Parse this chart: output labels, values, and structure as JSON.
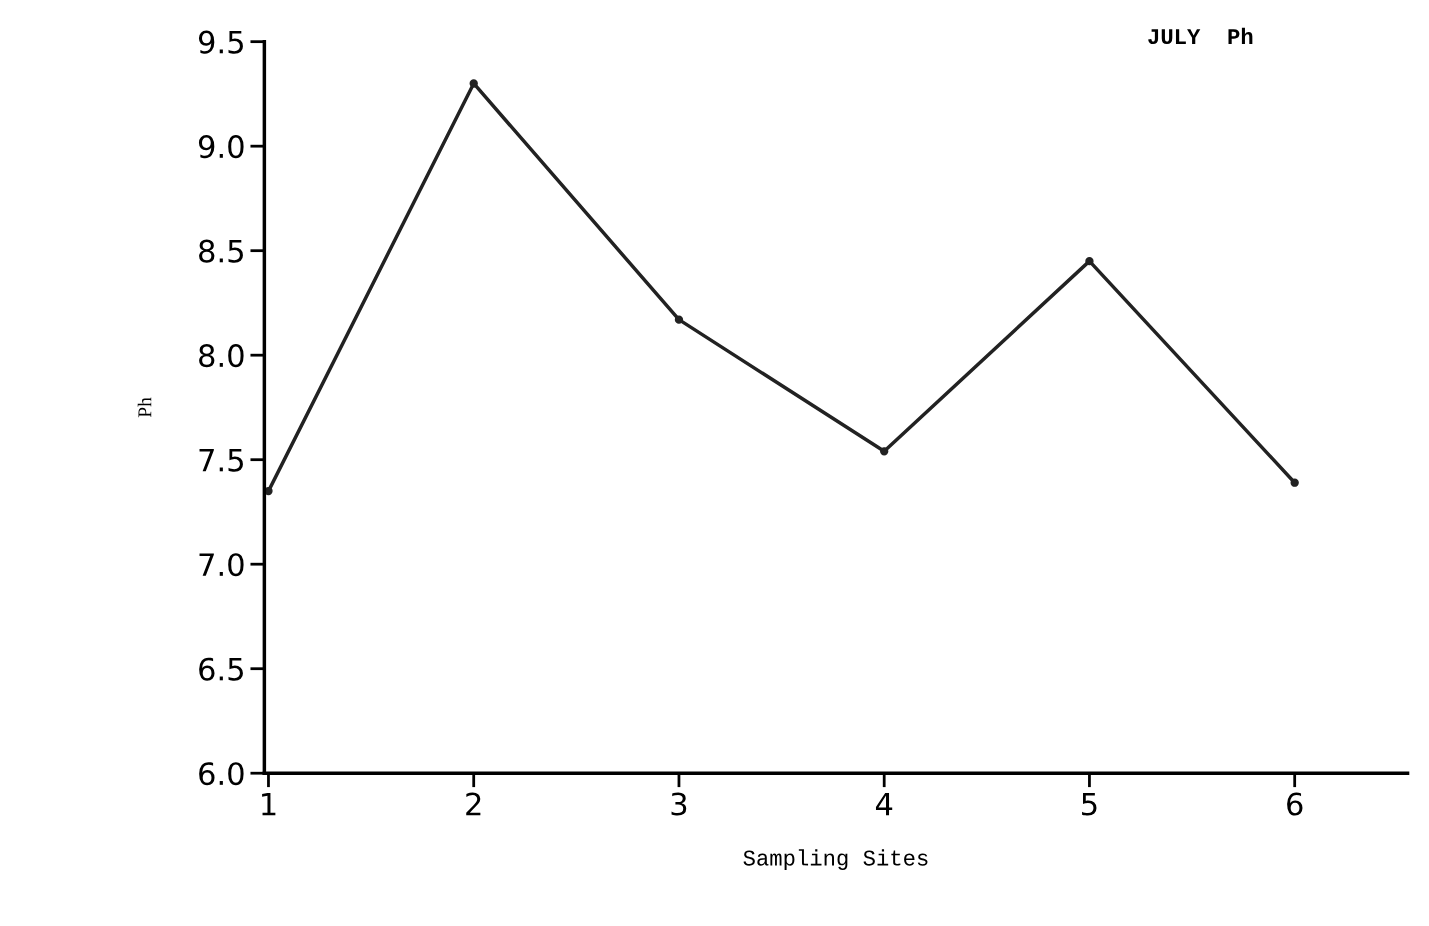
{
  "chart_data": {
    "type": "line",
    "title": "JULY  Ph",
    "xlabel": "Sampling Sites",
    "ylabel": "Ph",
    "categories": [
      "1",
      "2",
      "3",
      "4",
      "5",
      "6"
    ],
    "series": [
      {
        "color": "#222222",
        "values": [
          7.35,
          9.3,
          8.17,
          7.54,
          8.45,
          7.39
        ]
      }
    ],
    "ylim": [
      6.0,
      9.5
    ],
    "yticks": [
      {
        "value": 6.0,
        "label": "6.0"
      },
      {
        "value": 6.5,
        "label": "6.5"
      },
      {
        "value": 7.0,
        "label": "7.0"
      },
      {
        "value": 7.5,
        "label": "7.5"
      },
      {
        "value": 8.0,
        "label": "8.0"
      },
      {
        "value": 8.5,
        "label": "8.5"
      },
      {
        "value": 9.0,
        "label": "9.0"
      },
      {
        "value": 9.5,
        "label": "9.5"
      }
    ],
    "grid": false,
    "legend": false,
    "marker": "circle",
    "line_style": "solid"
  }
}
